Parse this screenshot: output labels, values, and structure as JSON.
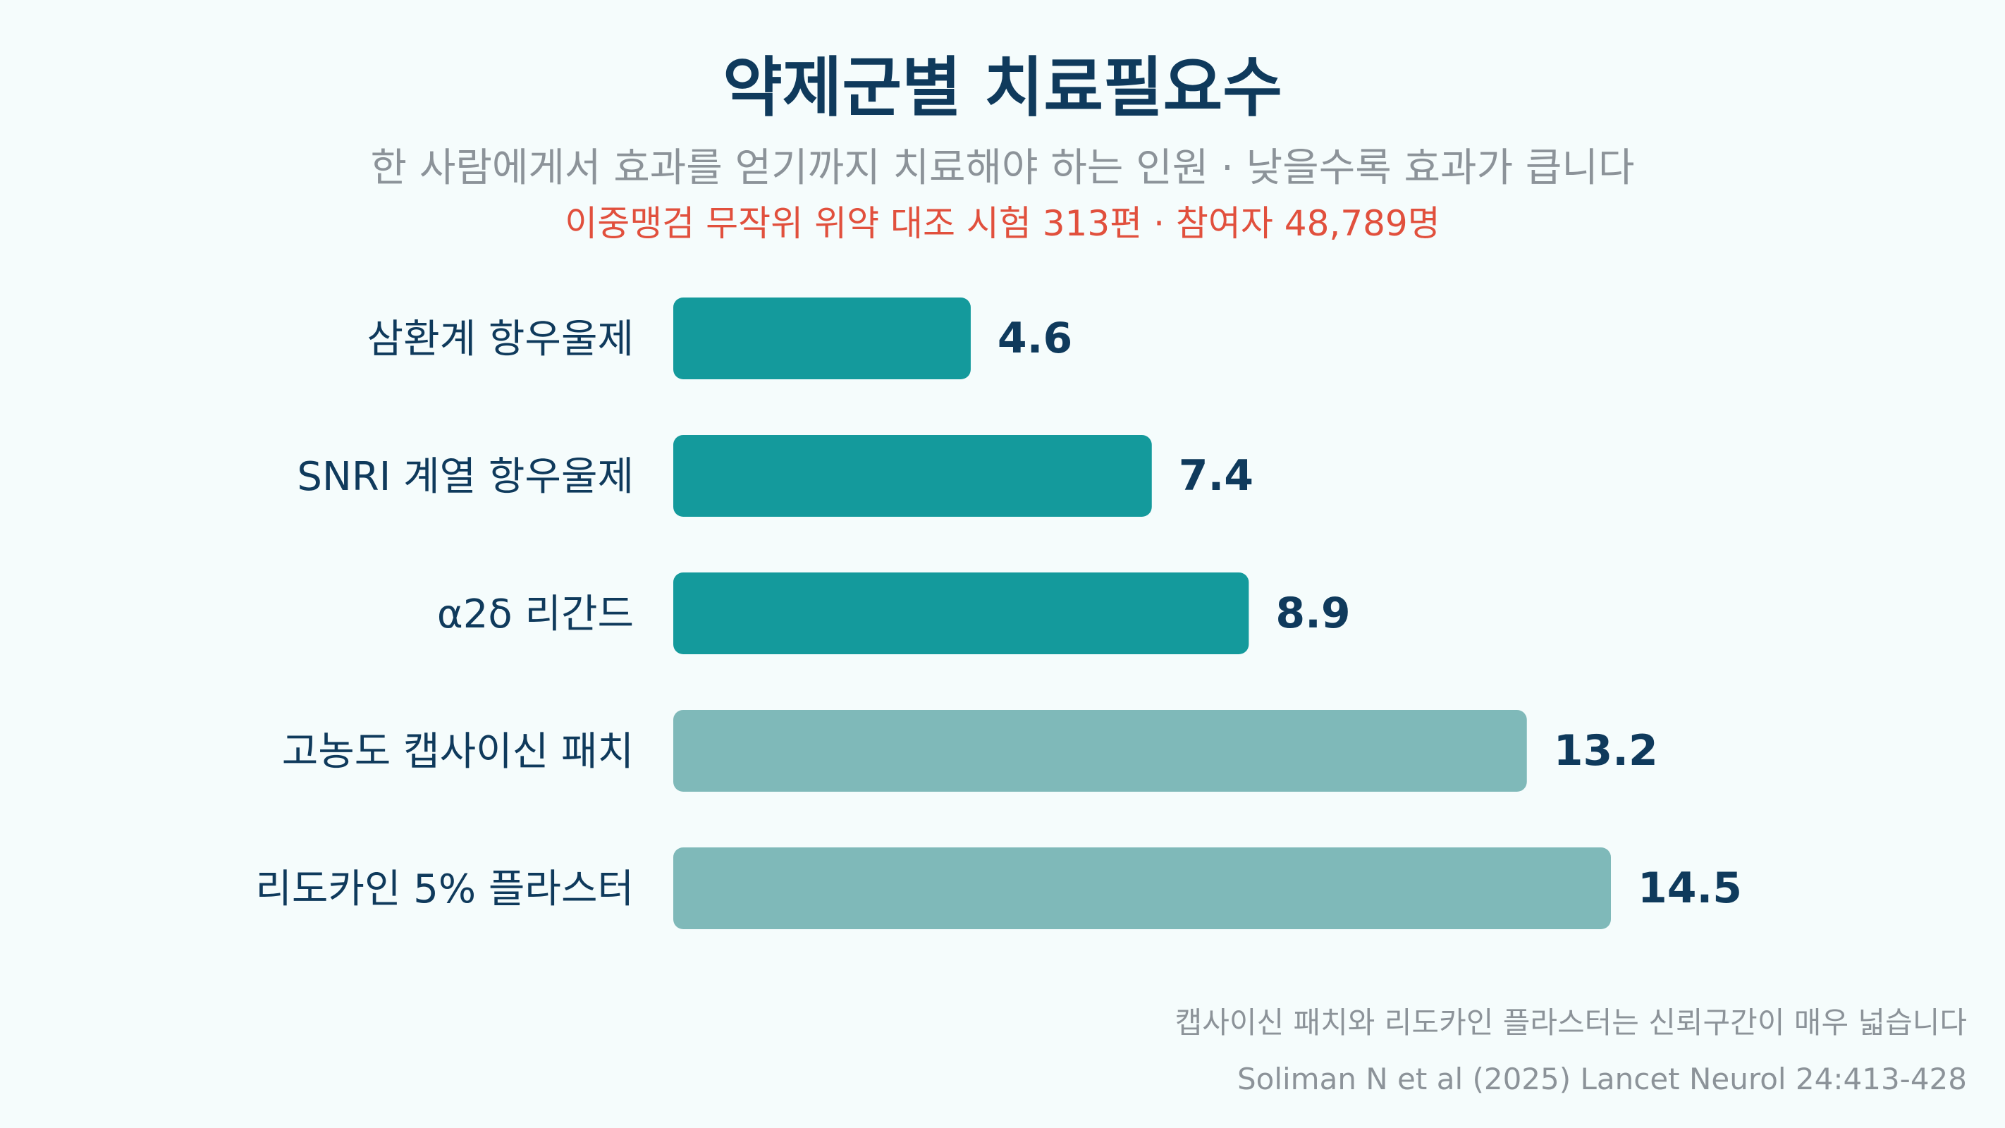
{
  "header": {
    "title": "약제군별 치료필요수",
    "subtitle": "한 사람에게서 효과를 얻기까지 치료해야 하는 인원 · 낮을수록 효과가 큽니다",
    "highlight": "이중맹검 무작위 위약 대조 시험 313편 · 참여자 48,789명"
  },
  "chart_data": {
    "type": "bar",
    "orientation": "horizontal",
    "categories": [
      "삼환계 항우울제",
      "SNRI 계열 항우울제",
      "α2δ 리간드",
      "고농도 캡사이신 패치",
      "리도카인 5% 플라스터"
    ],
    "values": [
      4.6,
      7.4,
      8.9,
      13.2,
      14.5
    ],
    "value_labels": [
      "4.6",
      "7.4",
      "8.9",
      "13.2",
      "14.5"
    ],
    "bar_colors": [
      "#149a9c",
      "#149a9c",
      "#149a9c",
      "#7fb9b9",
      "#7fb9b9"
    ],
    "label_color": "#0f3a5c",
    "xlim": [
      0,
      14.5
    ],
    "grid": false,
    "legend": "none"
  },
  "footer": {
    "note": "캡사이신 패치와 리도카인 플라스터는 신뢰구간이 매우 넓습니다",
    "source": "Soliman N et al (2025) Lancet Neurol 24:413-428"
  }
}
